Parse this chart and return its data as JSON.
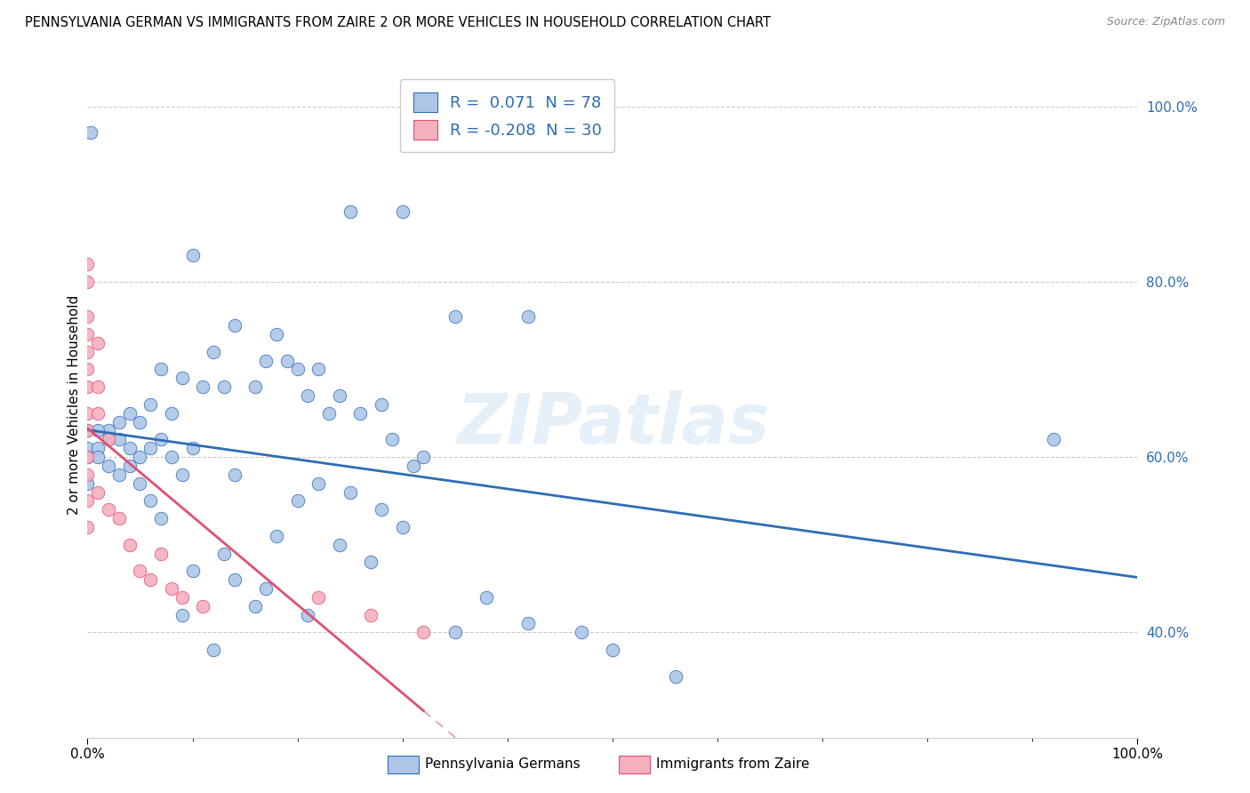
{
  "title": "PENNSYLVANIA GERMAN VS IMMIGRANTS FROM ZAIRE 2 OR MORE VEHICLES IN HOUSEHOLD CORRELATION CHART",
  "source": "Source: ZipAtlas.com",
  "ylabel": "2 or more Vehicles in Household",
  "xmin": 0.0,
  "xmax": 1.0,
  "ymin": 0.28,
  "ymax": 1.04,
  "ytick_vals": [
    0.4,
    0.6,
    0.8,
    1.0
  ],
  "watermark": "ZIPatlas",
  "blue_scatter_color": "#adc6e8",
  "pink_scatter_color": "#f4b0bf",
  "blue_line_color": "#2e6db4",
  "pink_line_color": "#e05070",
  "blue_scatter": [
    [
      0.003,
      0.97
    ],
    [
      0.25,
      0.88
    ],
    [
      0.3,
      0.88
    ],
    [
      0.35,
      0.76
    ],
    [
      0.42,
      0.76
    ],
    [
      0.1,
      0.83
    ],
    [
      0.14,
      0.75
    ],
    [
      0.18,
      0.74
    ],
    [
      0.12,
      0.72
    ],
    [
      0.17,
      0.71
    ],
    [
      0.19,
      0.71
    ],
    [
      0.2,
      0.7
    ],
    [
      0.22,
      0.7
    ],
    [
      0.07,
      0.7
    ],
    [
      0.09,
      0.69
    ],
    [
      0.11,
      0.68
    ],
    [
      0.13,
      0.68
    ],
    [
      0.16,
      0.68
    ],
    [
      0.21,
      0.67
    ],
    [
      0.24,
      0.67
    ],
    [
      0.28,
      0.66
    ],
    [
      0.06,
      0.66
    ],
    [
      0.08,
      0.65
    ],
    [
      0.23,
      0.65
    ],
    [
      0.26,
      0.65
    ],
    [
      0.04,
      0.65
    ],
    [
      0.05,
      0.64
    ],
    [
      0.03,
      0.64
    ],
    [
      0.02,
      0.63
    ],
    [
      0.01,
      0.63
    ],
    [
      0.0,
      0.63
    ],
    [
      0.02,
      0.62
    ],
    [
      0.03,
      0.62
    ],
    [
      0.07,
      0.62
    ],
    [
      0.29,
      0.62
    ],
    [
      0.0,
      0.61
    ],
    [
      0.01,
      0.61
    ],
    [
      0.04,
      0.61
    ],
    [
      0.06,
      0.61
    ],
    [
      0.1,
      0.61
    ],
    [
      0.0,
      0.6
    ],
    [
      0.01,
      0.6
    ],
    [
      0.05,
      0.6
    ],
    [
      0.08,
      0.6
    ],
    [
      0.32,
      0.6
    ],
    [
      0.02,
      0.59
    ],
    [
      0.04,
      0.59
    ],
    [
      0.31,
      0.59
    ],
    [
      0.03,
      0.58
    ],
    [
      0.09,
      0.58
    ],
    [
      0.14,
      0.58
    ],
    [
      0.22,
      0.57
    ],
    [
      0.0,
      0.57
    ],
    [
      0.05,
      0.57
    ],
    [
      0.25,
      0.56
    ],
    [
      0.06,
      0.55
    ],
    [
      0.2,
      0.55
    ],
    [
      0.28,
      0.54
    ],
    [
      0.07,
      0.53
    ],
    [
      0.3,
      0.52
    ],
    [
      0.18,
      0.51
    ],
    [
      0.24,
      0.5
    ],
    [
      0.13,
      0.49
    ],
    [
      0.27,
      0.48
    ],
    [
      0.1,
      0.47
    ],
    [
      0.14,
      0.46
    ],
    [
      0.17,
      0.45
    ],
    [
      0.38,
      0.44
    ],
    [
      0.16,
      0.43
    ],
    [
      0.09,
      0.42
    ],
    [
      0.21,
      0.42
    ],
    [
      0.42,
      0.41
    ],
    [
      0.35,
      0.4
    ],
    [
      0.47,
      0.4
    ],
    [
      0.12,
      0.38
    ],
    [
      0.5,
      0.38
    ],
    [
      0.56,
      0.35
    ],
    [
      0.92,
      0.62
    ]
  ],
  "pink_scatter": [
    [
      0.0,
      0.82
    ],
    [
      0.0,
      0.8
    ],
    [
      0.0,
      0.76
    ],
    [
      0.0,
      0.74
    ],
    [
      0.01,
      0.73
    ],
    [
      0.0,
      0.72
    ],
    [
      0.0,
      0.7
    ],
    [
      0.0,
      0.68
    ],
    [
      0.01,
      0.68
    ],
    [
      0.0,
      0.65
    ],
    [
      0.01,
      0.65
    ],
    [
      0.0,
      0.63
    ],
    [
      0.02,
      0.62
    ],
    [
      0.0,
      0.6
    ],
    [
      0.0,
      0.58
    ],
    [
      0.01,
      0.56
    ],
    [
      0.0,
      0.55
    ],
    [
      0.02,
      0.54
    ],
    [
      0.03,
      0.53
    ],
    [
      0.0,
      0.52
    ],
    [
      0.04,
      0.5
    ],
    [
      0.07,
      0.49
    ],
    [
      0.05,
      0.47
    ],
    [
      0.06,
      0.46
    ],
    [
      0.08,
      0.45
    ],
    [
      0.09,
      0.44
    ],
    [
      0.22,
      0.44
    ],
    [
      0.11,
      0.43
    ],
    [
      0.27,
      0.42
    ],
    [
      0.32,
      0.4
    ]
  ],
  "blue_R": 0.071,
  "pink_R": -0.208,
  "blue_N": 78,
  "pink_N": 30
}
